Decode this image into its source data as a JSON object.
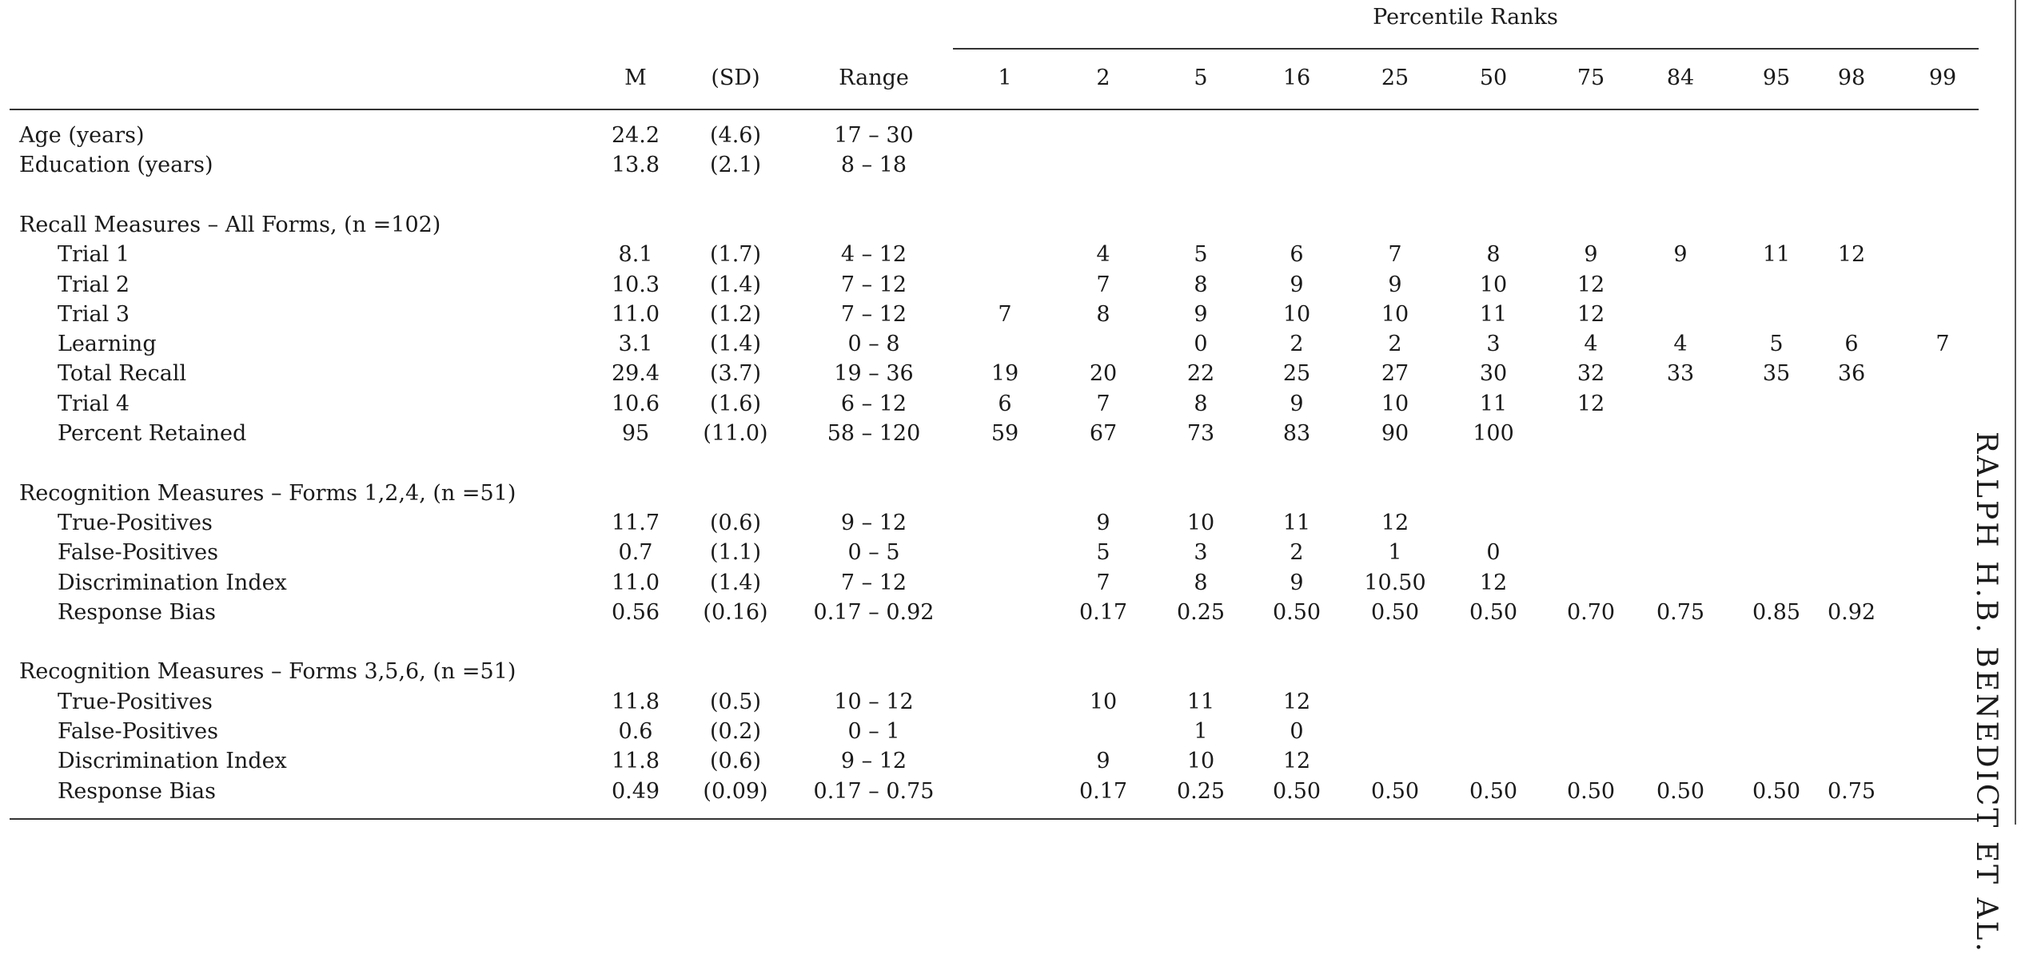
{
  "running_head": "RALPH H.B. BENEDICT ET AL.",
  "header": {
    "spanner": "Percentile Ranks",
    "columns": [
      "M",
      "(SD)",
      "Range",
      "1",
      "2",
      "5",
      "16",
      "25",
      "50",
      "75",
      "84",
      "95",
      "98",
      "99"
    ]
  },
  "rows": [
    {
      "label": "Age (years)",
      "indent": 0,
      "cells": [
        "24.2",
        "(4.6)",
        "17 – 30",
        "",
        "",
        "",
        "",
        "",
        "",
        "",
        "",
        "",
        "",
        ""
      ]
    },
    {
      "label": "Education (years)",
      "indent": 0,
      "cells": [
        "13.8",
        "(2.1)",
        "8 – 18",
        "",
        "",
        "",
        "",
        "",
        "",
        "",
        "",
        "",
        "",
        ""
      ]
    },
    {
      "label": "",
      "indent": 0,
      "cells": []
    },
    {
      "label": "Recall Measures – All Forms, (n =102)",
      "indent": 0,
      "cells": []
    },
    {
      "label": "Trial 1",
      "indent": 1,
      "cells": [
        "8.1",
        "(1.7)",
        "4 – 12",
        "",
        "4",
        "5",
        "6",
        "7",
        "8",
        "9",
        "9",
        "11",
        "12",
        ""
      ]
    },
    {
      "label": "Trial 2",
      "indent": 1,
      "cells": [
        "10.3",
        "(1.4)",
        "7 – 12",
        "",
        "7",
        "8",
        "9",
        "9",
        "10",
        "12",
        "",
        "",
        "",
        ""
      ]
    },
    {
      "label": "Trial 3",
      "indent": 1,
      "cells": [
        "11.0",
        "(1.2)",
        "7 – 12",
        "7",
        "8",
        "9",
        "10",
        "10",
        "11",
        "12",
        "",
        "",
        "",
        ""
      ]
    },
    {
      "label": "Learning",
      "indent": 1,
      "cells": [
        "3.1",
        "(1.4)",
        "0 – 8",
        "",
        "",
        "0",
        "2",
        "2",
        "3",
        "4",
        "4",
        "5",
        "6",
        "7"
      ]
    },
    {
      "label": "Total Recall",
      "indent": 1,
      "cells": [
        "29.4",
        "(3.7)",
        "19 – 36",
        "19",
        "20",
        "22",
        "25",
        "27",
        "30",
        "32",
        "33",
        "35",
        "36",
        ""
      ]
    },
    {
      "label": "Trial 4",
      "indent": 1,
      "cells": [
        "10.6",
        "(1.6)",
        "6 – 12",
        "6",
        "7",
        "8",
        "9",
        "10",
        "11",
        "12",
        "",
        "",
        "",
        ""
      ]
    },
    {
      "label": "Percent Retained",
      "indent": 1,
      "cells": [
        "95",
        "(11.0)",
        "58 – 120",
        "59",
        "67",
        "73",
        "83",
        "90",
        "100",
        "",
        "",
        "",
        "",
        ""
      ]
    },
    {
      "label": "",
      "indent": 0,
      "cells": []
    },
    {
      "label": "Recognition Measures – Forms 1,2,4, (n =51)",
      "indent": 0,
      "cells": []
    },
    {
      "label": "True-Positives",
      "indent": 1,
      "cells": [
        "11.7",
        "(0.6)",
        "9 – 12",
        "",
        "9",
        "10",
        "11",
        "12",
        "",
        "",
        "",
        "",
        "",
        ""
      ]
    },
    {
      "label": "False-Positives",
      "indent": 1,
      "cells": [
        "0.7",
        "(1.1)",
        "0 – 5",
        "",
        "5",
        "3",
        "2",
        "1",
        "0",
        "",
        "",
        "",
        "",
        ""
      ]
    },
    {
      "label": "Discrimination Index",
      "indent": 1,
      "cells": [
        "11.0",
        "(1.4)",
        "7 – 12",
        "",
        "7",
        "8",
        "9",
        "10.50",
        "12",
        "",
        "",
        "",
        "",
        ""
      ]
    },
    {
      "label": "Response Bias",
      "indent": 1,
      "cells": [
        "0.56",
        "(0.16)",
        "0.17 – 0.92",
        "",
        "0.17",
        "0.25",
        "0.50",
        "0.50",
        "0.50",
        "0.70",
        "0.75",
        "0.85",
        "0.92",
        ""
      ]
    },
    {
      "label": "",
      "indent": 0,
      "cells": []
    },
    {
      "label": "Recognition Measures – Forms 3,5,6, (n =51)",
      "indent": 0,
      "cells": []
    },
    {
      "label": "True-Positives",
      "indent": 1,
      "cells": [
        "11.8",
        "(0.5)",
        "10 – 12",
        "",
        "10",
        "11",
        "12",
        "",
        "",
        "",
        "",
        "",
        "",
        ""
      ]
    },
    {
      "label": "False-Positives",
      "indent": 1,
      "cells": [
        "0.6",
        "(0.2)",
        "0 – 1",
        "",
        "",
        "1",
        "0",
        "",
        "",
        "",
        "",
        "",
        "",
        ""
      ]
    },
    {
      "label": "Discrimination Index",
      "indent": 1,
      "cells": [
        "11.8",
        "(0.6)",
        "9 – 12",
        "",
        "9",
        "10",
        "12",
        "",
        "",
        "",
        "",
        "",
        "",
        ""
      ]
    },
    {
      "label": "Response Bias",
      "indent": 1,
      "cells": [
        "0.49",
        "(0.09)",
        "0.17 – 0.75",
        "",
        "0.17",
        "0.25",
        "0.50",
        "0.50",
        "0.50",
        "0.50",
        "0.50",
        "0.50",
        "0.75",
        ""
      ]
    }
  ]
}
